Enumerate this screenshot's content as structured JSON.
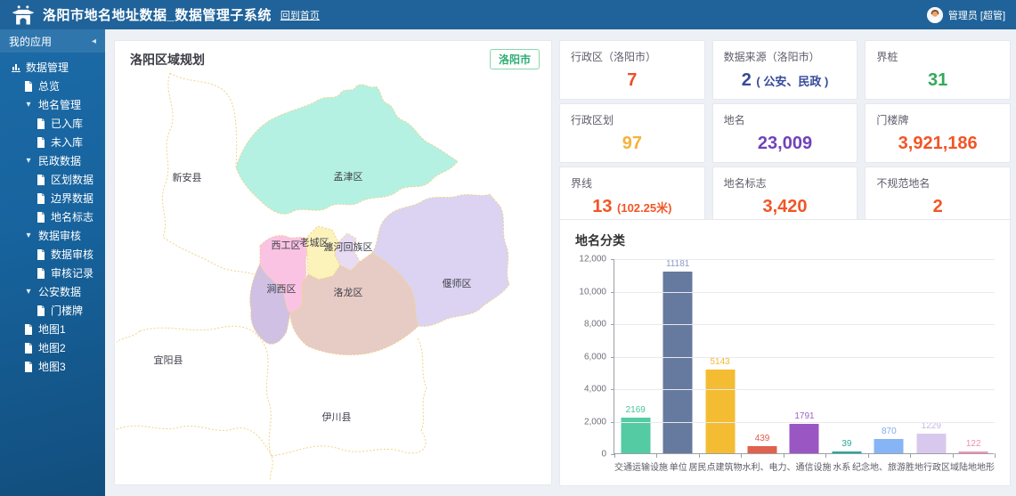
{
  "header": {
    "title": "洛阳市地名地址数据_数据管理子系统",
    "home_link": "回到首页",
    "user": "管理员 [超管]"
  },
  "sidebar": {
    "header": "我的应用",
    "items": [
      {
        "label": "数据管理",
        "level": 1,
        "icon": "chart-icon"
      },
      {
        "label": "总览",
        "level": 2,
        "icon": "file-icon"
      },
      {
        "label": "地名管理",
        "level": 2,
        "icon": "caret-down-icon"
      },
      {
        "label": "已入库",
        "level": 3,
        "icon": "file-icon"
      },
      {
        "label": "未入库",
        "level": 3,
        "icon": "file-icon"
      },
      {
        "label": "民政数据",
        "level": 2,
        "icon": "caret-down-icon"
      },
      {
        "label": "区划数据",
        "level": 3,
        "icon": "file-icon"
      },
      {
        "label": "边界数据",
        "level": 3,
        "icon": "file-icon"
      },
      {
        "label": "地名标志",
        "level": 3,
        "icon": "file-icon"
      },
      {
        "label": "数据审核",
        "level": 2,
        "icon": "caret-down-icon"
      },
      {
        "label": "数据审核",
        "level": 3,
        "icon": "file-icon"
      },
      {
        "label": "审核记录",
        "level": 3,
        "icon": "file-icon"
      },
      {
        "label": "公安数据",
        "level": 2,
        "icon": "caret-down-icon"
      },
      {
        "label": "门楼牌",
        "level": 3,
        "icon": "file-icon"
      },
      {
        "label": "地图1",
        "level": 2,
        "icon": "file-icon"
      },
      {
        "label": "地图2",
        "level": 2,
        "icon": "file-icon"
      },
      {
        "label": "地图3",
        "level": 2,
        "icon": "file-icon"
      }
    ]
  },
  "map": {
    "title": "洛阳区域规划",
    "badge": "洛阳市",
    "districts": [
      {
        "name": "孟津区",
        "fill": "#b4f1e2"
      },
      {
        "name": "西工区",
        "fill": "#fbc3e3"
      },
      {
        "name": "老城区",
        "fill": "#fcf3bb"
      },
      {
        "name": "瀍河回族区",
        "fill": "#e7dcf3"
      },
      {
        "name": "涧西区",
        "fill": "#cfc0e4"
      },
      {
        "name": "洛龙区",
        "fill": "#e7cbc5"
      },
      {
        "name": "偃师区",
        "fill": "#dbd3f1"
      },
      {
        "name": "新安县",
        "fill": "#ffffff"
      },
      {
        "name": "宜阳县",
        "fill": "#ffffff"
      },
      {
        "name": "伊川县",
        "fill": "#ffffff"
      }
    ]
  },
  "cards": [
    {
      "label": "行政区（洛阳市）",
      "value": "7",
      "suffix": "",
      "color": "#ee4d26"
    },
    {
      "label": "数据来源（洛阳市）",
      "value": "2",
      "suffix": "( 公安、民政 )",
      "color": "#35499b"
    },
    {
      "label": "界桩",
      "value": "31",
      "suffix": "",
      "color": "#35a85c"
    },
    {
      "label": "行政区划",
      "value": "97",
      "suffix": "",
      "color": "#f3b33c"
    },
    {
      "label": "地名",
      "value": "23,009",
      "suffix": "",
      "color": "#7143b8"
    },
    {
      "label": "门楼牌",
      "value": "3,921,186",
      "suffix": "",
      "color": "#f25526"
    },
    {
      "label": "界线",
      "value": "13",
      "suffix": "(102.25米)",
      "color": "#f25526"
    },
    {
      "label": "地名标志",
      "value": "3,420",
      "suffix": "",
      "color": "#f25526"
    },
    {
      "label": "不规范地名",
      "value": "2",
      "suffix": "",
      "color": "#f25526"
    }
  ],
  "chart_data": {
    "type": "bar",
    "title": "地名分类",
    "categories": [
      "交通运输设施",
      "单位",
      "居民点",
      "建筑物",
      "水利、电力、通信设施",
      "水系",
      "纪念地、旅游胜地",
      "行政区域",
      "陆地地形"
    ],
    "values": [
      2169,
      11181,
      5143,
      439,
      1791,
      39,
      870,
      1229,
      122
    ],
    "bar_colors": [
      "#55cba3",
      "#66799e",
      "#f4bc33",
      "#e0614d",
      "#9a57c4",
      "#2aa79b",
      "#86b4f5",
      "#d9c8ee",
      "#f495b9"
    ],
    "label_colors": [
      "#49c29a",
      "#8a9cc9",
      "#f2b93a",
      "#e25b4b",
      "#9b63c6",
      "#2aa79b",
      "#7fa9ef",
      "#c9b6e4",
      "#ef8fae"
    ],
    "xlabel": "",
    "ylabel": "",
    "ylim": [
      0,
      12000
    ],
    "yticks": [
      "0",
      "2,000",
      "4,000",
      "6,000",
      "8,000",
      "10,000",
      "12,000"
    ],
    "grid": true,
    "legend": "none"
  }
}
